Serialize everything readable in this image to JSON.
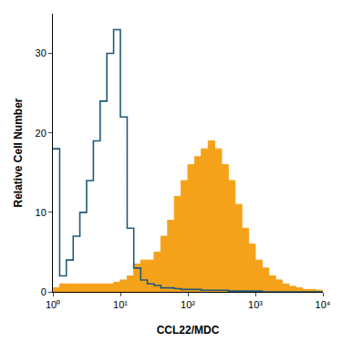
{
  "chart_data": {
    "type": "line",
    "x_label": "CCL22/MDC",
    "y_label": "Relative Cell Number",
    "log": "x",
    "grid": false,
    "x": [
      1,
      1.26,
      1.58,
      2,
      2.51,
      3.16,
      3.98,
      5.01,
      6.31,
      7.94,
      10,
      12.6,
      15.8,
      20,
      25.1,
      31.6,
      39.8,
      50.1,
      63.1,
      79.4,
      100,
      126,
      158,
      200,
      251,
      316,
      398,
      501,
      631,
      794,
      1000,
      1259,
      1585,
      1995,
      2512,
      3162,
      3981,
      5012,
      6310,
      7943,
      10000
    ],
    "series": [
      {
        "type": "area",
        "color": "#f5a21b",
        "values": [
          0.5,
          1,
          1,
          1,
          1,
          1,
          1,
          1,
          1,
          1.2,
          1.5,
          2,
          3.5,
          4,
          4,
          5,
          7,
          9,
          12,
          14,
          16,
          17,
          18,
          19,
          18,
          16,
          14,
          11,
          8,
          6,
          4,
          3,
          2,
          1.5,
          1,
          0.7,
          0.5,
          0.3,
          0.3,
          0.2,
          0
        ]
      },
      {
        "type": "line",
        "color": "#1f5a7a",
        "values": [
          18,
          2,
          4,
          7,
          10,
          14,
          19,
          24,
          30,
          33,
          22,
          8,
          3,
          1.5,
          1,
          0.8,
          0.5,
          0.5,
          0.4,
          0.3,
          0.3,
          0.3,
          0.2,
          0.2,
          0.2,
          0.2,
          0.1,
          0.1,
          0.1,
          0.1,
          0.1,
          0,
          0,
          0,
          0,
          0,
          0,
          0,
          0,
          0,
          0
        ]
      }
    ],
    "xlim": [
      1,
      10000
    ],
    "xticks": [
      {
        "value": 1,
        "label": "10⁰"
      },
      {
        "value": 10,
        "label": "10¹"
      },
      {
        "value": 100,
        "label": "10²"
      },
      {
        "value": 1000,
        "label": "10³"
      },
      {
        "value": 10000,
        "label": "10⁴"
      }
    ],
    "ylim": [
      0,
      35
    ],
    "yticks": [
      0,
      10,
      20,
      30
    ]
  }
}
